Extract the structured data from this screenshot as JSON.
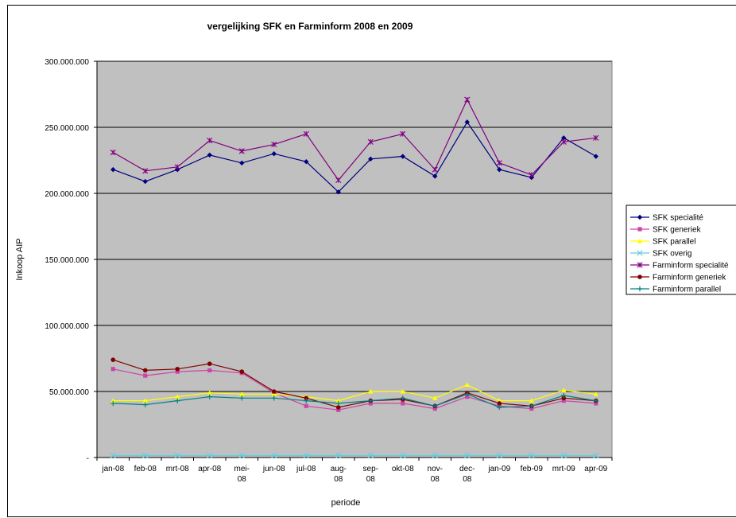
{
  "chart_data": {
    "type": "line",
    "title": "vergelijking SFK en Farminform 2008 en 2009",
    "xlabel": "periode",
    "ylabel": "Inkoop AIP",
    "ylim": [
      0,
      300000000
    ],
    "y_ticks": [
      {
        "value": 0,
        "label": "-"
      },
      {
        "value": 50000000,
        "label": "50.000.000"
      },
      {
        "value": 100000000,
        "label": "100.000.000"
      },
      {
        "value": 150000000,
        "label": "150.000.000"
      },
      {
        "value": 200000000,
        "label": "200.000.000"
      },
      {
        "value": 250000000,
        "label": "250.000.000"
      },
      {
        "value": 300000000,
        "label": "300.000.000"
      }
    ],
    "grid": "horizontal",
    "plot_background": "#c0c0c0",
    "legend_position": "right",
    "categories": [
      "jan-08",
      "feb-08",
      "mrt-08",
      "apr-08",
      "mei-08",
      "jun-08",
      "jul-08",
      "aug-08",
      "sep-08",
      "okt-08",
      "nov-08",
      "dec-08",
      "jan-09",
      "feb-09",
      "mrt-09",
      "apr-09"
    ],
    "category_lines": [
      [
        "jan-08"
      ],
      [
        "feb-08"
      ],
      [
        "mrt-08"
      ],
      [
        "apr-08"
      ],
      [
        "mei-",
        "08"
      ],
      [
        "jun-08"
      ],
      [
        "jul-08"
      ],
      [
        "aug-",
        "08"
      ],
      [
        "sep-",
        "08"
      ],
      [
        "okt-08"
      ],
      [
        "nov-",
        "08"
      ],
      [
        "dec-",
        "08"
      ],
      [
        "jan-09"
      ],
      [
        "feb-09"
      ],
      [
        "mrt-09"
      ],
      [
        "apr-09"
      ]
    ],
    "series": [
      {
        "name": "SFK specialité",
        "color": "#000080",
        "marker": "diamond",
        "values": [
          218000000,
          209000000,
          218000000,
          229000000,
          223000000,
          230000000,
          224000000,
          201000000,
          226000000,
          228000000,
          213000000,
          254000000,
          218000000,
          212000000,
          242000000,
          228000000
        ]
      },
      {
        "name": "SFK generiek",
        "color": "#cc44aa",
        "marker": "square",
        "values": [
          67000000,
          62000000,
          65000000,
          66000000,
          64000000,
          49000000,
          39000000,
          36000000,
          41000000,
          41000000,
          37000000,
          46000000,
          39000000,
          37000000,
          43000000,
          41000000
        ]
      },
      {
        "name": "SFK parallel",
        "color": "#ffff00",
        "marker": "triangle",
        "values": [
          43000000,
          43000000,
          46000000,
          49000000,
          48000000,
          48000000,
          46000000,
          43000000,
          50000000,
          50000000,
          45000000,
          55000000,
          43000000,
          43000000,
          51000000,
          48000000
        ]
      },
      {
        "name": "SFK overig",
        "color": "#66ccdd",
        "marker": "x",
        "values": [
          1500000,
          1500000,
          1500000,
          1500000,
          1500000,
          1500000,
          1500000,
          1500000,
          1500000,
          1500000,
          1500000,
          1500000,
          1500000,
          1500000,
          1500000,
          1500000
        ]
      },
      {
        "name": "Farminform specialité",
        "color": "#800080",
        "marker": "star",
        "values": [
          231000000,
          217000000,
          220000000,
          240000000,
          232000000,
          237000000,
          245000000,
          210000000,
          239000000,
          245000000,
          218000000,
          271000000,
          223000000,
          214000000,
          239000000,
          242000000
        ]
      },
      {
        "name": "Farminform generiek",
        "color": "#800000",
        "marker": "circle",
        "values": [
          74000000,
          66000000,
          67000000,
          71000000,
          65000000,
          50000000,
          45000000,
          38000000,
          43000000,
          44000000,
          39000000,
          49000000,
          41000000,
          39000000,
          45000000,
          43000000
        ]
      },
      {
        "name": "Farminform parallel",
        "color": "#008080",
        "marker": "plus",
        "values": [
          41000000,
          40000000,
          43000000,
          46000000,
          45000000,
          45000000,
          43000000,
          41000000,
          43000000,
          45000000,
          39000000,
          48000000,
          38000000,
          39000000,
          47000000,
          43000000
        ]
      }
    ]
  }
}
